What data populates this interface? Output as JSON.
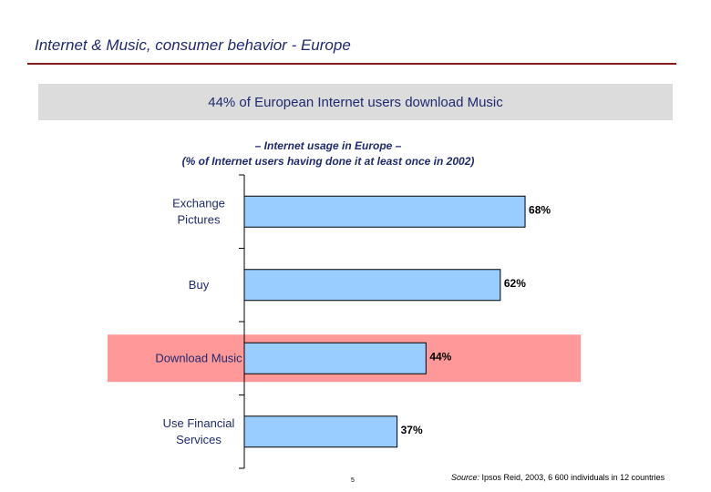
{
  "header": {
    "title": "Internet & Music, consumer behavior - Europe"
  },
  "banner": {
    "text": "44% of European Internet users download Music"
  },
  "chart_data": {
    "type": "bar",
    "orientation": "horizontal",
    "title_lines": [
      "– Internet usage in Europe –",
      "(% of Internet users having done it at least once in 2002)"
    ],
    "categories": [
      [
        "Exchange",
        "Pictures"
      ],
      [
        "Buy"
      ],
      [
        "Download Music"
      ],
      [
        "Use Financial",
        "Services"
      ]
    ],
    "values": [
      68,
      62,
      44,
      37
    ],
    "value_labels": [
      "68%",
      "62%",
      "44%",
      "37%"
    ],
    "xlim": [
      0,
      100
    ],
    "highlight_index": 2,
    "grid": false,
    "colors": {
      "bar": "#99ccff",
      "bar_stroke": "#000000",
      "highlight": "#ff9999",
      "axis": "#000000"
    }
  },
  "footer": {
    "page_number": "5",
    "source_label": "Source:",
    "source_text": " Ipsos Reid, 2003, 6 600 individuals in 12 countries"
  }
}
